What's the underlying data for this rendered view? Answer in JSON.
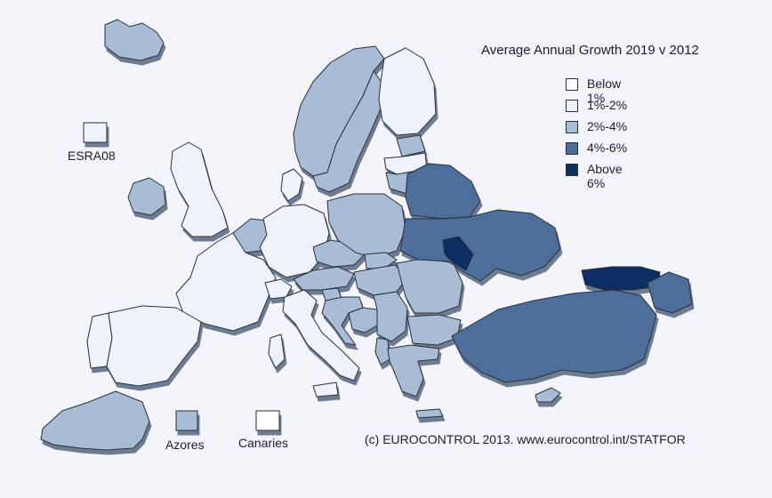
{
  "map": {
    "title": "Average Annual Growth 2019 v 2012",
    "credit": "(c) EUROCONTROL 2013. www.eurocontrol.int/STATFOR",
    "legend": [
      {
        "label": "Below 1%",
        "color": "#ffffff"
      },
      {
        "label": "1%-2%",
        "color": "#eef3fb"
      },
      {
        "label": "2%-4%",
        "color": "#a9bcd6"
      },
      {
        "label": "4%-6%",
        "color": "#4e6e9a"
      },
      {
        "label": "Above 6%",
        "color": "#0f2f63"
      }
    ],
    "insets": {
      "esra": {
        "label": "ESRA08",
        "category": "1%-2%"
      },
      "azores": {
        "label": "Azores",
        "category": "2%-4%"
      },
      "canaries": {
        "label": "Canaries",
        "category": "Below 1%"
      }
    },
    "regions": [
      {
        "name": "Iceland",
        "category": "2%-4%"
      },
      {
        "name": "Norway",
        "category": "2%-4%"
      },
      {
        "name": "Sweden",
        "category": "2%-4%"
      },
      {
        "name": "Finland",
        "category": "1%-2%"
      },
      {
        "name": "United Kingdom",
        "category": "1%-2%"
      },
      {
        "name": "Ireland",
        "category": "2%-4%"
      },
      {
        "name": "Denmark",
        "category": "1%-2%"
      },
      {
        "name": "Benelux",
        "category": "2%-4%"
      },
      {
        "name": "France",
        "category": "1%-2%"
      },
      {
        "name": "Germany",
        "category": "1%-2%"
      },
      {
        "name": "Spain",
        "category": "1%-2%"
      },
      {
        "name": "Portugal",
        "category": "1%-2%"
      },
      {
        "name": "Italy",
        "category": "1%-2%"
      },
      {
        "name": "Switzerland",
        "category": "1%-2%"
      },
      {
        "name": "Austria",
        "category": "2%-4%"
      },
      {
        "name": "Poland",
        "category": "2%-4%"
      },
      {
        "name": "Czech Republic",
        "category": "2%-4%"
      },
      {
        "name": "Slovakia",
        "category": "2%-4%"
      },
      {
        "name": "Hungary",
        "category": "2%-4%"
      },
      {
        "name": "Slovenia",
        "category": "2%-4%"
      },
      {
        "name": "Croatia",
        "category": "2%-4%"
      },
      {
        "name": "Bosnia and Herzegovina",
        "category": "2%-4%"
      },
      {
        "name": "Serbia",
        "category": "2%-4%"
      },
      {
        "name": "Romania",
        "category": "2%-4%"
      },
      {
        "name": "Bulgaria",
        "category": "2%-4%"
      },
      {
        "name": "Greece",
        "category": "2%-4%"
      },
      {
        "name": "Albania",
        "category": "2%-4%"
      },
      {
        "name": "Estonia",
        "category": "2%-4%"
      },
      {
        "name": "Latvia",
        "category": "1%-2%"
      },
      {
        "name": "Lithuania",
        "category": "2%-4%"
      },
      {
        "name": "Belarus",
        "category": "4%-6%"
      },
      {
        "name": "Ukraine",
        "category": "4%-6%"
      },
      {
        "name": "Moldova",
        "category": "Above 6%"
      },
      {
        "name": "Turkey",
        "category": "4%-6%"
      },
      {
        "name": "Georgia",
        "category": "Above 6%"
      },
      {
        "name": "Armenia",
        "category": "4%-6%"
      },
      {
        "name": "Cyprus",
        "category": "2%-4%"
      },
      {
        "name": "Morocco",
        "category": "2%-4%"
      }
    ]
  }
}
